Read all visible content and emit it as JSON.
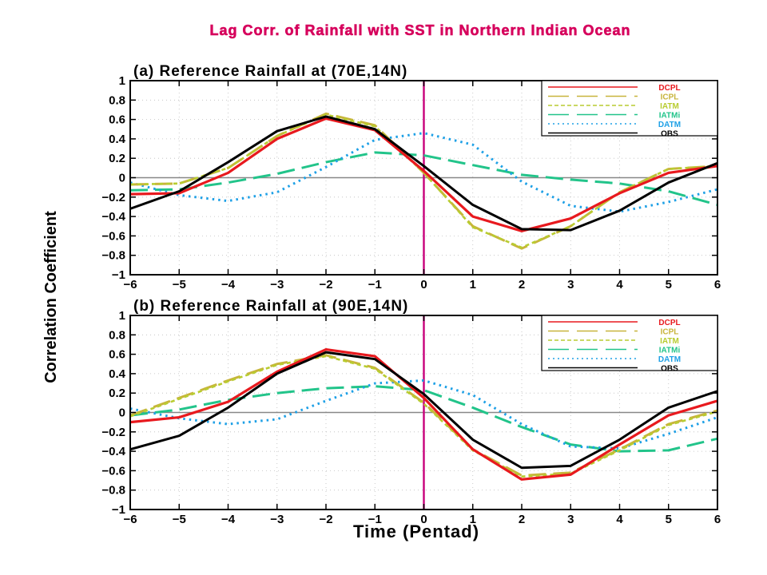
{
  "title": "Lag Corr. of Rainfall with SST in Northern Indian Ocean",
  "ylabel": "Correlation Coefficient",
  "xlabel": "Time (Pentad)",
  "colors": {
    "title": "#d6005c",
    "DCPL": "#e8191e",
    "ICPL": "#c8b43c",
    "IATM": "#b8cc30",
    "IATMi": "#22c48a",
    "DATM": "#1ea0e6",
    "OBS": "#000000",
    "zero_vline": "#c8007a",
    "zero_hline": "#888888"
  },
  "chart_data": [
    {
      "type": "line",
      "title": "(a) Reference Rainfall at (70E,14N)",
      "x": [
        -6,
        -5,
        -4,
        -3,
        -2,
        -1,
        0,
        1,
        2,
        3,
        4,
        5,
        6
      ],
      "xlim": [
        -6,
        6
      ],
      "ylim": [
        -1,
        1
      ],
      "yticks": [
        "1",
        "0.8",
        "0.6",
        "0.4",
        "0.2",
        "0",
        "−0.2",
        "−0.4",
        "−0.6",
        "−0.8",
        "−1"
      ],
      "xticks": [
        "−6",
        "−5",
        "−4",
        "−3",
        "−2",
        "−1",
        "0",
        "1",
        "2",
        "3",
        "4",
        "5",
        "6"
      ],
      "legend": "top-right",
      "series": [
        {
          "name": "DCPL",
          "style": "solid",
          "values": [
            -0.17,
            -0.16,
            0.05,
            0.4,
            0.61,
            0.49,
            0.07,
            -0.4,
            -0.55,
            -0.42,
            -0.16,
            0.05,
            0.12
          ]
        },
        {
          "name": "ICPL",
          "style": "longdash",
          "values": [
            -0.07,
            -0.06,
            0.1,
            0.43,
            0.66,
            0.54,
            0.05,
            -0.5,
            -0.73,
            -0.5,
            -0.15,
            0.09,
            0.12
          ]
        },
        {
          "name": "IATM",
          "style": "shortdash",
          "values": [
            -0.07,
            -0.06,
            0.1,
            0.43,
            0.65,
            0.53,
            0.05,
            -0.51,
            -0.72,
            -0.5,
            -0.15,
            0.09,
            0.12
          ]
        },
        {
          "name": "IATMi",
          "style": "longdash",
          "values": [
            -0.13,
            -0.12,
            -0.05,
            0.04,
            0.16,
            0.26,
            0.23,
            0.13,
            0.03,
            -0.02,
            -0.06,
            -0.14,
            -0.28
          ]
        },
        {
          "name": "DATM",
          "style": "dotted",
          "values": [
            -0.05,
            -0.18,
            -0.24,
            -0.15,
            0.11,
            0.39,
            0.46,
            0.34,
            -0.04,
            -0.29,
            -0.35,
            -0.25,
            -0.12
          ]
        },
        {
          "name": "OBS",
          "style": "solid",
          "values": [
            -0.32,
            -0.14,
            0.16,
            0.48,
            0.63,
            0.5,
            0.12,
            -0.28,
            -0.53,
            -0.54,
            -0.34,
            -0.05,
            0.15
          ]
        }
      ]
    },
    {
      "type": "line",
      "title": "(b) Reference Rainfall at (90E,14N)",
      "x": [
        -6,
        -5,
        -4,
        -3,
        -2,
        -1,
        0,
        1,
        2,
        3,
        4,
        5,
        6
      ],
      "xlim": [
        -6,
        6
      ],
      "ylim": [
        -1,
        1
      ],
      "yticks": [
        "1",
        "0.8",
        "0.6",
        "0.4",
        "0.2",
        "0",
        "−0.2",
        "−0.4",
        "−0.6",
        "−0.8",
        "−1"
      ],
      "xticks": [
        "−6",
        "−5",
        "−4",
        "−3",
        "−2",
        "−1",
        "0",
        "1",
        "2",
        "3",
        "4",
        "5",
        "6"
      ],
      "legend": "top-right",
      "series": [
        {
          "name": "DCPL",
          "style": "solid",
          "values": [
            -0.1,
            -0.05,
            0.11,
            0.42,
            0.65,
            0.58,
            0.15,
            -0.38,
            -0.69,
            -0.64,
            -0.33,
            -0.03,
            0.12
          ]
        },
        {
          "name": "ICPL",
          "style": "longdash",
          "values": [
            -0.03,
            0.15,
            0.33,
            0.5,
            0.59,
            0.46,
            0.1,
            -0.38,
            -0.65,
            -0.62,
            -0.38,
            -0.12,
            0.02
          ]
        },
        {
          "name": "IATM",
          "style": "shortdash",
          "values": [
            -0.04,
            0.14,
            0.32,
            0.49,
            0.58,
            0.45,
            0.09,
            -0.39,
            -0.66,
            -0.63,
            -0.39,
            -0.13,
            0.01
          ]
        },
        {
          "name": "IATMi",
          "style": "longdash",
          "values": [
            -0.03,
            0.03,
            0.13,
            0.2,
            0.25,
            0.27,
            0.23,
            0.05,
            -0.15,
            -0.33,
            -0.4,
            -0.39,
            -0.27
          ]
        },
        {
          "name": "DATM",
          "style": "dotted",
          "values": [
            0.04,
            -0.06,
            -0.12,
            -0.07,
            0.12,
            0.3,
            0.33,
            0.18,
            -0.12,
            -0.35,
            -0.37,
            -0.22,
            -0.05
          ]
        },
        {
          "name": "OBS",
          "style": "solid",
          "values": [
            -0.38,
            -0.24,
            0.05,
            0.4,
            0.62,
            0.55,
            0.19,
            -0.28,
            -0.57,
            -0.55,
            -0.28,
            0.05,
            0.22
          ]
        }
      ]
    }
  ]
}
